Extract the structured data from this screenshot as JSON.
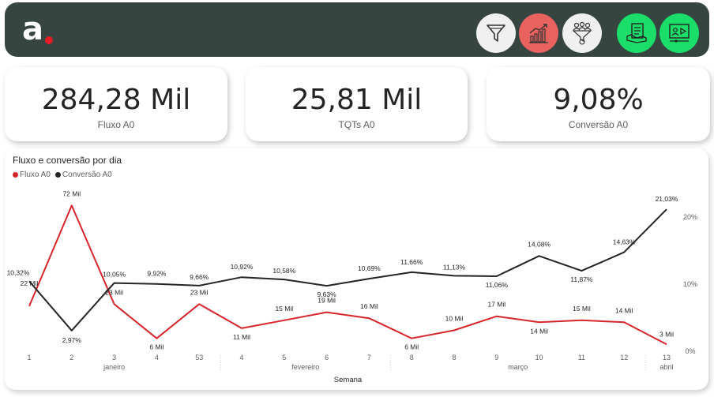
{
  "colors": {
    "header_bg": "#364540",
    "red": "#d6262b",
    "dark": "#252423",
    "green": "#1bde6a",
    "salmon": "#e8635f",
    "light": "#f0f0f0"
  },
  "header": {
    "logo_text": "a",
    "nav": [
      {
        "name": "funnel-icon",
        "bg": "light"
      },
      {
        "name": "growth-chart-icon",
        "bg": "salmon"
      },
      {
        "name": "people-money-icon",
        "bg": "light"
      },
      {
        "name": "document-hand-icon",
        "bg": "green"
      },
      {
        "name": "video-presentation-icon",
        "bg": "green"
      }
    ]
  },
  "kpis": [
    {
      "value": "284,28 Mil",
      "label": "Fluxo A0"
    },
    {
      "value": "25,81 Mil",
      "label": "TQTs A0"
    },
    {
      "value": "9,08%",
      "label": "Conversão A0"
    }
  ],
  "chart_data": {
    "type": "line",
    "title": "Fluxo e conversão por dia",
    "xlabel": "Semana",
    "categories": [
      "1",
      "2",
      "3",
      "4",
      "53",
      "4",
      "5",
      "6",
      "7",
      "8",
      "8",
      "9",
      "10",
      "11",
      "12",
      "13"
    ],
    "month_groups": [
      {
        "label": "janeiro",
        "start": 0,
        "end": 4
      },
      {
        "label": "fevereiro",
        "start": 5,
        "end": 8
      },
      {
        "label": "março",
        "start": 9,
        "end": 14
      },
      {
        "label": "abril",
        "start": 15,
        "end": 15
      }
    ],
    "series": [
      {
        "name": "Fluxo A0",
        "color": "#d6262b",
        "axis": "left",
        "values": [
          22,
          72,
          23,
          6,
          23,
          11,
          15,
          19,
          16,
          6,
          10,
          17,
          14,
          15,
          14,
          3
        ],
        "labels": [
          "22 Mil",
          "72 Mil",
          "23 Mil",
          "6 Mil",
          "23 Mil",
          "11 Mil",
          "15 Mil",
          "19 Mil",
          "16 Mil",
          "6 Mil",
          "10 Mil",
          "17 Mil",
          "14 Mil",
          "15 Mil",
          "14 Mil",
          "3 Mil"
        ]
      },
      {
        "name": "Conversão A0",
        "color": "#252423",
        "axis": "right",
        "values": [
          10.32,
          2.97,
          10.05,
          9.92,
          9.66,
          10.92,
          10.58,
          9.63,
          10.69,
          11.66,
          11.13,
          11.06,
          14.08,
          11.87,
          14.63,
          21.03
        ],
        "labels": [
          "10,32%",
          "2,97%",
          "10,05%",
          "9,92%",
          "9,66%",
          "10,92%",
          "10,58%",
          "9,63%",
          "10,69%",
          "11,66%",
          "11,13%",
          "11,06%",
          "14,08%",
          "11,87%",
          "14,63%",
          "21,03%"
        ]
      }
    ],
    "y_left": {
      "min": 0,
      "max": 80
    },
    "y_right": {
      "min": 0,
      "max": 24,
      "ticks": [
        0,
        10,
        20
      ],
      "tick_labels": [
        "0%",
        "10%",
        "20%"
      ]
    },
    "grid": false,
    "legend": "top-left"
  }
}
